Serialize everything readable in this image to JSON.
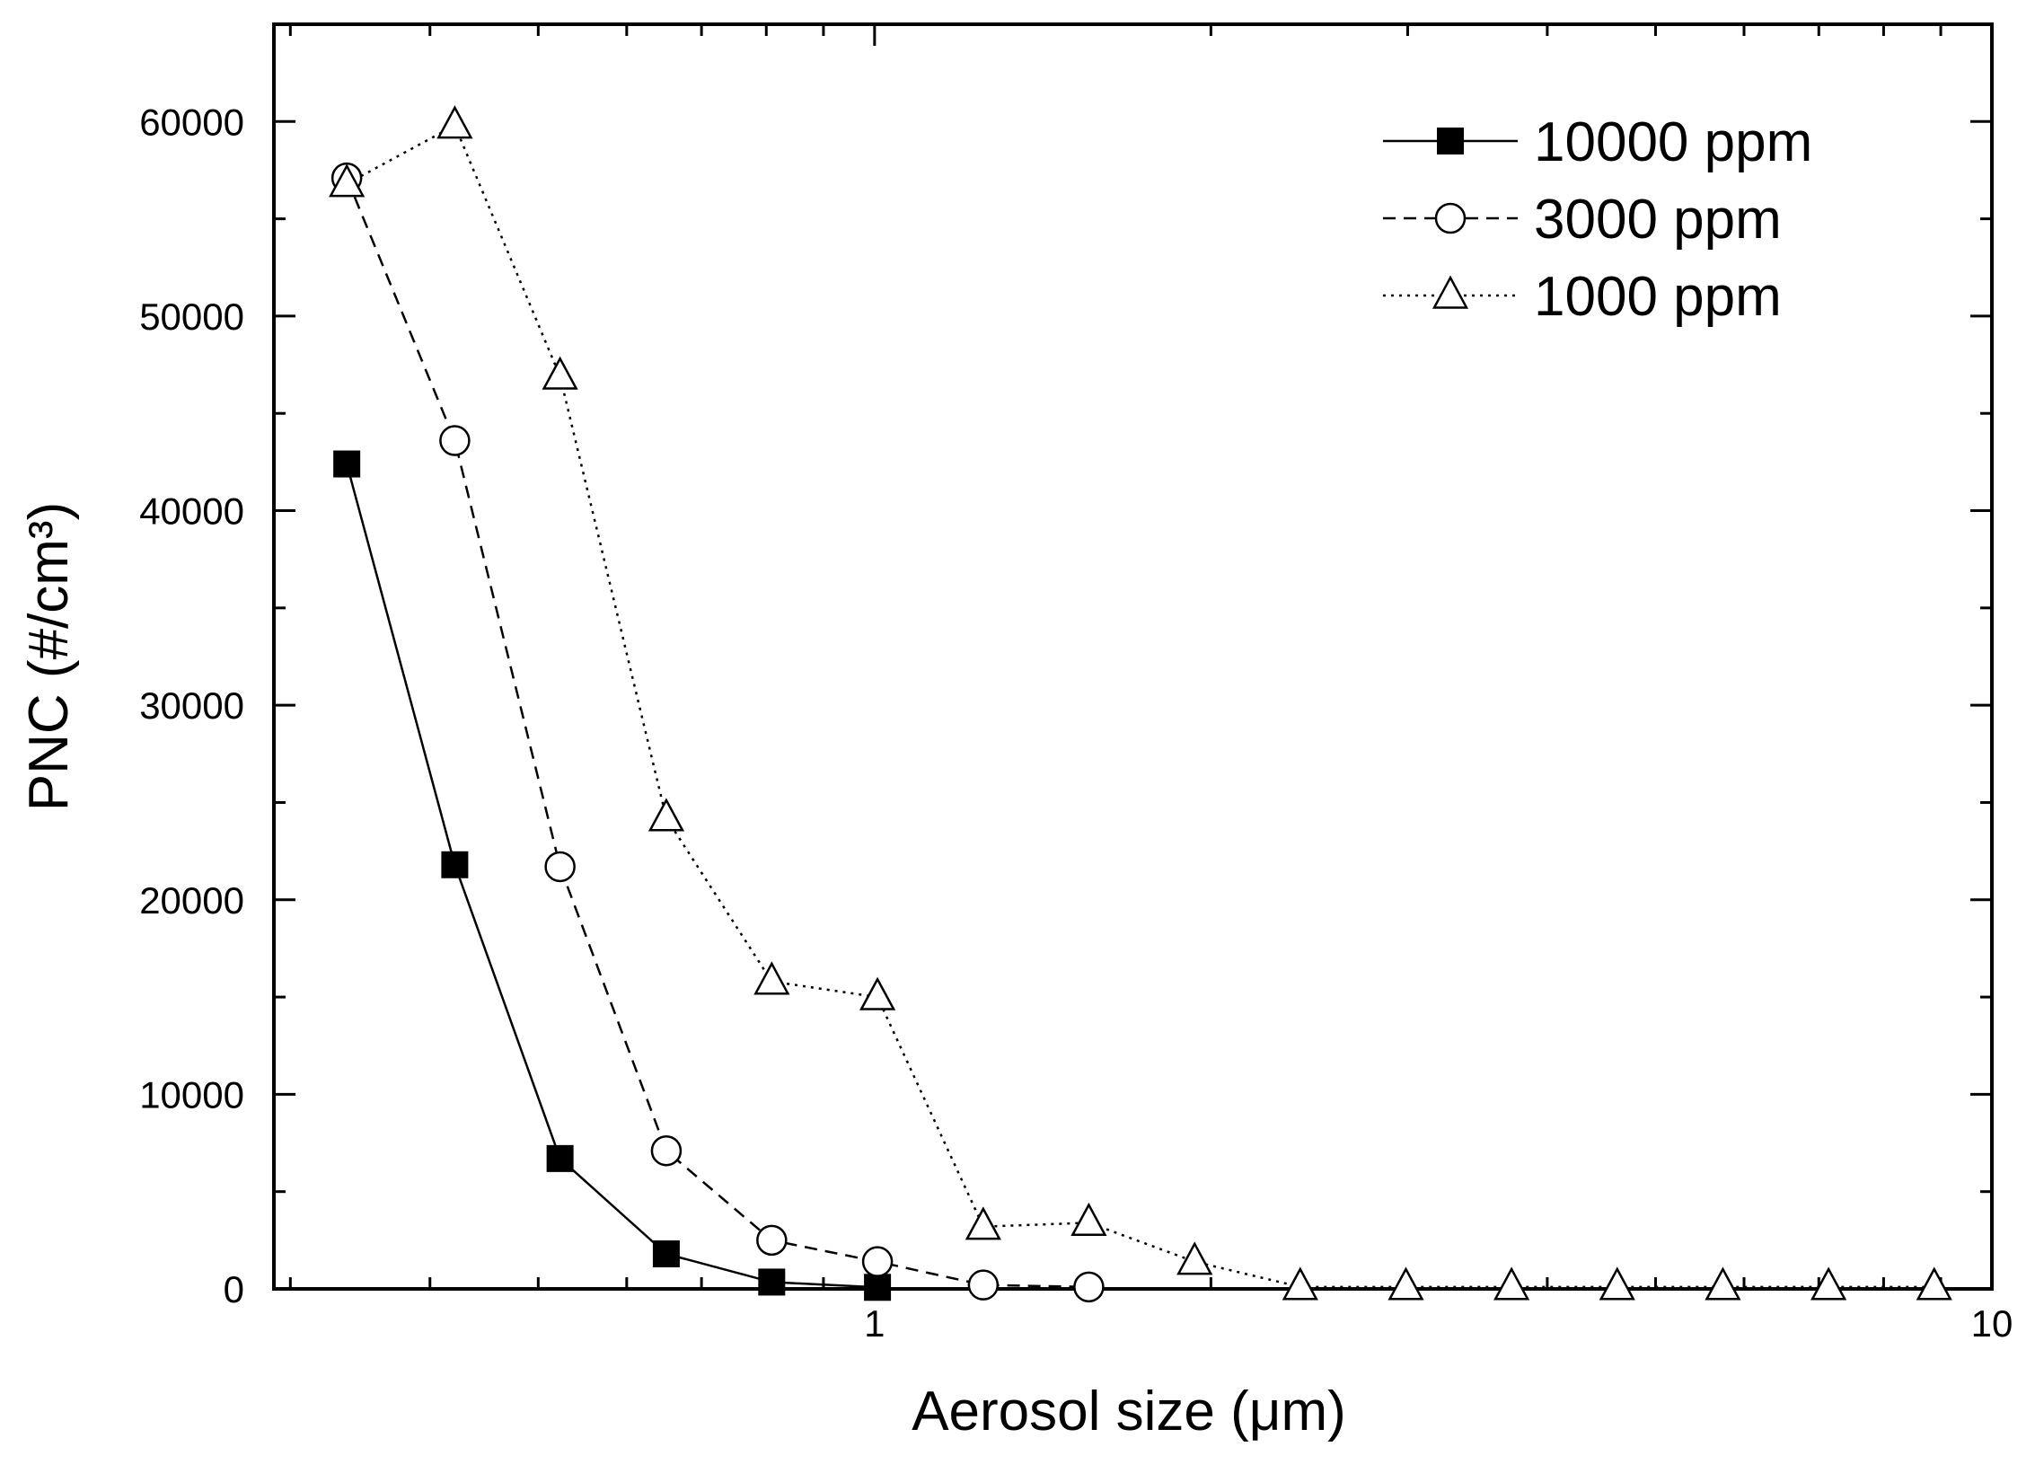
{
  "chart_data": {
    "type": "line",
    "xlabel": "Aerosol size (μm)",
    "ylabel": "PNC (#/cm³)",
    "x_scale": "log",
    "xlim": [
      0.29,
      10
    ],
    "ylim": [
      0,
      65000
    ],
    "x_ticks": [
      1,
      10
    ],
    "x_tick_labels": [
      "1",
      "10"
    ],
    "y_ticks": [
      0,
      10000,
      20000,
      30000,
      40000,
      50000,
      60000
    ],
    "y_tick_labels": [
      "0",
      "10000",
      "20000",
      "30000",
      "40000",
      "50000",
      "60000"
    ],
    "legend_position": "top-right",
    "grid": false,
    "series": [
      {
        "name": "10000 ppm",
        "marker": "filled-square",
        "line": "solid",
        "x": [
          0.337,
          0.421,
          0.523,
          0.651,
          0.809,
          1.006
        ],
        "y": [
          42400,
          21800,
          6700,
          1800,
          350,
          80
        ]
      },
      {
        "name": "3000 ppm",
        "marker": "open-circle",
        "line": "dashed",
        "x": [
          0.337,
          0.421,
          0.523,
          0.651,
          0.809,
          1.006,
          1.251,
          1.555
        ],
        "y": [
          57100,
          43600,
          21700,
          7100,
          2500,
          1400,
          200,
          100
        ]
      },
      {
        "name": "1000 ppm",
        "marker": "open-triangle",
        "line": "dotted",
        "x": [
          0.337,
          0.421,
          0.523,
          0.651,
          0.809,
          1.006,
          1.251,
          1.555,
          1.934,
          2.404,
          2.989,
          3.716,
          4.62,
          5.744,
          7.142,
          8.879
        ],
        "y": [
          56800,
          59800,
          46900,
          24200,
          15800,
          15000,
          3200,
          3400,
          1400,
          100,
          100,
          100,
          100,
          100,
          100,
          100
        ]
      }
    ]
  }
}
